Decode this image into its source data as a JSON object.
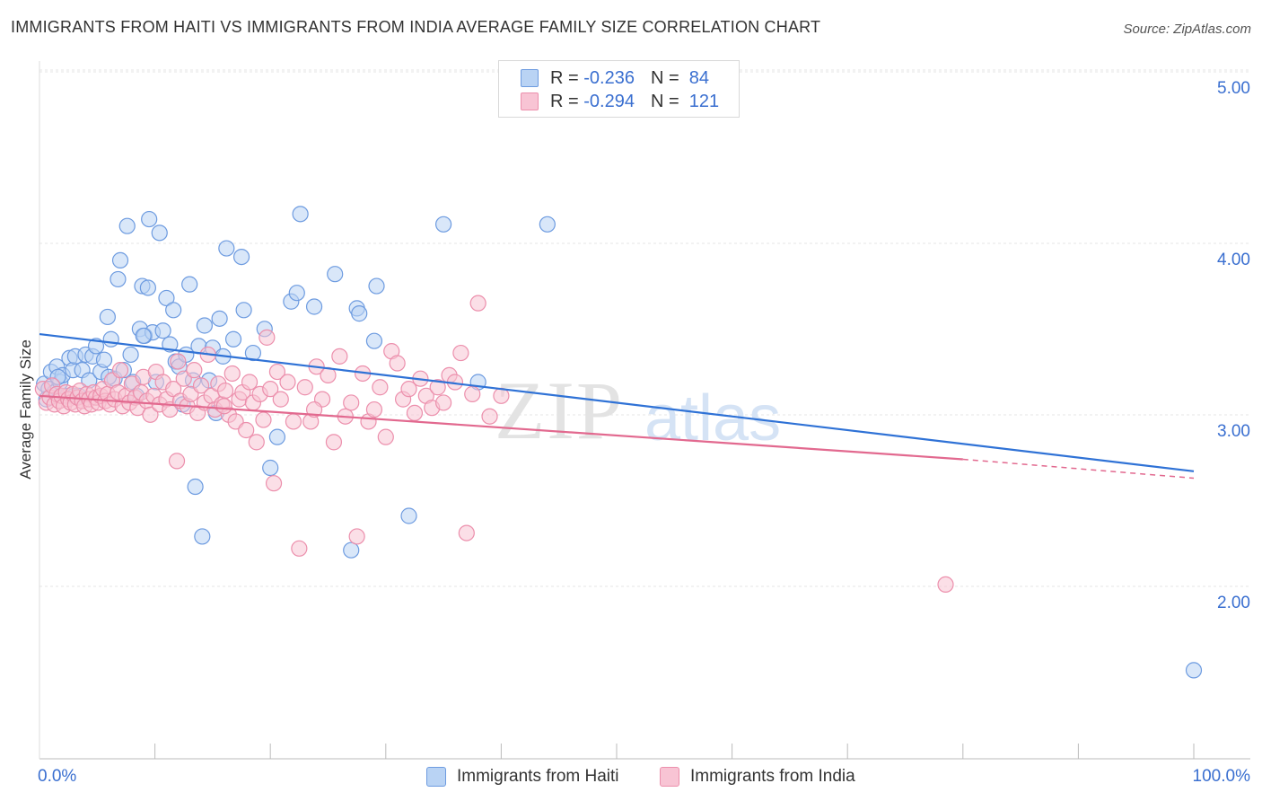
{
  "header": {
    "title": "IMMIGRANTS FROM HAITI VS IMMIGRANTS FROM INDIA AVERAGE FAMILY SIZE CORRELATION CHART",
    "source": "Source: ZipAtlas.com"
  },
  "watermark": {
    "zip": "ZIP",
    "atlas": "atlas"
  },
  "stats_legend": [
    {
      "r_label": "R =",
      "r_value": "-0.236",
      "n_label": "N =",
      "n_value": "84",
      "fill": "#b9d3f4",
      "stroke": "#6d9be0"
    },
    {
      "r_label": "R =",
      "r_value": "-0.294",
      "n_label": "N =",
      "n_value": "121",
      "fill": "#f8c4d4",
      "stroke": "#ec8fac"
    }
  ],
  "bottom_legend": [
    {
      "label": "Immigrants from Haiti",
      "fill": "#b9d3f4",
      "stroke": "#6d9be0"
    },
    {
      "label": "Immigrants from India",
      "fill": "#f8c4d4",
      "stroke": "#ec8fac"
    }
  ],
  "chart_data": {
    "type": "scatter",
    "title": "IMMIGRANTS FROM HAITI VS IMMIGRANTS FROM INDIA AVERAGE FAMILY SIZE CORRELATION CHART",
    "xlabel": "",
    "ylabel": "Average Family Size",
    "xlim": [
      0,
      100
    ],
    "ylim": [
      1.0,
      5.15
    ],
    "x_tick_labels": [
      "0.0%",
      "100.0%"
    ],
    "y_ticks": [
      2,
      3,
      4,
      5
    ],
    "y_tick_labels": [
      "2.00",
      "3.00",
      "4.00",
      "5.00"
    ],
    "grid": true,
    "legend_position": "top-center",
    "series": [
      {
        "name": "Immigrants from Haiti",
        "color": "#6d9be0",
        "fill": "#b9d3f4",
        "trend": {
          "x": [
            0,
            100
          ],
          "y": [
            3.56,
            2.76
          ],
          "color": "#2f72d6"
        },
        "points": [
          [
            0.4,
            3.27
          ],
          [
            0.8,
            3.24
          ],
          [
            1.0,
            3.34
          ],
          [
            1.3,
            3.22
          ],
          [
            1.5,
            3.37
          ],
          [
            1.8,
            3.28
          ],
          [
            2.0,
            3.32
          ],
          [
            2.4,
            3.2
          ],
          [
            2.6,
            3.42
          ],
          [
            2.9,
            3.35
          ],
          [
            3.1,
            3.43
          ],
          [
            3.4,
            3.2
          ],
          [
            3.7,
            3.35
          ],
          [
            4.0,
            3.44
          ],
          [
            4.3,
            3.29
          ],
          [
            4.6,
            3.43
          ],
          [
            4.9,
            3.49
          ],
          [
            5.3,
            3.34
          ],
          [
            5.6,
            3.41
          ],
          [
            5.9,
            3.66
          ],
          [
            6.2,
            3.53
          ],
          [
            6.5,
            3.3
          ],
          [
            6.8,
            3.88
          ],
          [
            7.0,
            3.99
          ],
          [
            7.3,
            3.35
          ],
          [
            7.6,
            4.19
          ],
          [
            7.9,
            3.44
          ],
          [
            8.1,
            3.28
          ],
          [
            8.4,
            3.2
          ],
          [
            8.7,
            3.59
          ],
          [
            8.9,
            3.84
          ],
          [
            9.1,
            3.55
          ],
          [
            9.4,
            3.83
          ],
          [
            9.5,
            4.23
          ],
          [
            9.8,
            3.57
          ],
          [
            10.1,
            3.28
          ],
          [
            10.4,
            4.15
          ],
          [
            10.7,
            3.58
          ],
          [
            11.0,
            3.77
          ],
          [
            11.3,
            3.5
          ],
          [
            11.6,
            3.7
          ],
          [
            11.8,
            3.4
          ],
          [
            12.1,
            3.37
          ],
          [
            12.4,
            3.15
          ],
          [
            12.7,
            3.44
          ],
          [
            13.0,
            3.85
          ],
          [
            13.3,
            3.29
          ],
          [
            13.5,
            2.67
          ],
          [
            13.8,
            3.49
          ],
          [
            14.1,
            2.38
          ],
          [
            14.3,
            3.61
          ],
          [
            14.7,
            3.29
          ],
          [
            15.0,
            3.48
          ],
          [
            15.3,
            3.1
          ],
          [
            15.6,
            3.65
          ],
          [
            15.9,
            3.43
          ],
          [
            16.2,
            4.06
          ],
          [
            16.8,
            3.53
          ],
          [
            17.5,
            4.01
          ],
          [
            17.7,
            3.7
          ],
          [
            18.5,
            3.45
          ],
          [
            19.5,
            3.59
          ],
          [
            20.0,
            2.78
          ],
          [
            20.6,
            2.96
          ],
          [
            21.8,
            3.75
          ],
          [
            22.3,
            3.8
          ],
          [
            22.6,
            4.26
          ],
          [
            23.8,
            3.72
          ],
          [
            25.6,
            3.91
          ],
          [
            27.0,
            2.3
          ],
          [
            27.5,
            3.71
          ],
          [
            29.2,
            3.84
          ],
          [
            27.7,
            3.68
          ],
          [
            29.0,
            3.52
          ],
          [
            32.0,
            2.5
          ],
          [
            35.0,
            4.2
          ],
          [
            38.0,
            3.28
          ],
          [
            44.0,
            4.2
          ],
          [
            100.0,
            1.6
          ],
          [
            6.0,
            3.31
          ],
          [
            9.0,
            3.55
          ],
          [
            3.0,
            3.2
          ],
          [
            0.6,
            3.18
          ],
          [
            1.6,
            3.31
          ]
        ]
      },
      {
        "name": "Immigrants from India",
        "color": "#ec8fac",
        "fill": "#f8c4d4",
        "trend": {
          "x": [
            0,
            80,
            100
          ],
          "y": [
            3.2,
            2.83,
            2.72
          ],
          "color": "#e2698f",
          "dashed_from": 80
        },
        "points": [
          [
            0.3,
            3.24
          ],
          [
            0.6,
            3.16
          ],
          [
            0.9,
            3.19
          ],
          [
            1.1,
            3.26
          ],
          [
            1.3,
            3.15
          ],
          [
            1.5,
            3.21
          ],
          [
            1.7,
            3.17
          ],
          [
            1.9,
            3.2
          ],
          [
            2.1,
            3.14
          ],
          [
            2.3,
            3.22
          ],
          [
            2.5,
            3.18
          ],
          [
            2.7,
            3.16
          ],
          [
            2.9,
            3.21
          ],
          [
            3.1,
            3.15
          ],
          [
            3.3,
            3.19
          ],
          [
            3.5,
            3.23
          ],
          [
            3.7,
            3.17
          ],
          [
            3.9,
            3.14
          ],
          [
            4.1,
            3.21
          ],
          [
            4.3,
            3.18
          ],
          [
            4.5,
            3.15
          ],
          [
            4.7,
            3.22
          ],
          [
            4.9,
            3.19
          ],
          [
            5.1,
            3.16
          ],
          [
            5.3,
            3.2
          ],
          [
            5.5,
            3.24
          ],
          [
            5.7,
            3.17
          ],
          [
            5.9,
            3.21
          ],
          [
            6.1,
            3.15
          ],
          [
            6.3,
            3.29
          ],
          [
            6.5,
            3.18
          ],
          [
            6.8,
            3.22
          ],
          [
            7.0,
            3.35
          ],
          [
            7.2,
            3.14
          ],
          [
            7.5,
            3.2
          ],
          [
            7.8,
            3.16
          ],
          [
            8.0,
            3.27
          ],
          [
            8.3,
            3.19
          ],
          [
            8.5,
            3.13
          ],
          [
            8.8,
            3.22
          ],
          [
            9.0,
            3.31
          ],
          [
            9.3,
            3.17
          ],
          [
            9.6,
            3.09
          ],
          [
            9.9,
            3.2
          ],
          [
            10.1,
            3.34
          ],
          [
            10.4,
            3.15
          ],
          [
            10.7,
            3.28
          ],
          [
            11.0,
            3.18
          ],
          [
            11.3,
            3.12
          ],
          [
            11.6,
            3.24
          ],
          [
            11.9,
            2.82
          ],
          [
            12.2,
            3.17
          ],
          [
            12.5,
            3.3
          ],
          [
            12.8,
            3.14
          ],
          [
            13.1,
            3.21
          ],
          [
            13.4,
            3.35
          ],
          [
            13.7,
            3.1
          ],
          [
            14.0,
            3.26
          ],
          [
            14.3,
            3.16
          ],
          [
            14.6,
            3.44
          ],
          [
            14.9,
            3.2
          ],
          [
            15.2,
            3.12
          ],
          [
            15.5,
            3.27
          ],
          [
            15.8,
            3.15
          ],
          [
            16.1,
            3.23
          ],
          [
            16.4,
            3.09
          ],
          [
            16.7,
            3.33
          ],
          [
            17.0,
            3.05
          ],
          [
            17.3,
            3.18
          ],
          [
            17.6,
            3.22
          ],
          [
            17.9,
            3.0
          ],
          [
            18.2,
            3.28
          ],
          [
            18.5,
            3.16
          ],
          [
            18.8,
            2.93
          ],
          [
            19.1,
            3.21
          ],
          [
            19.4,
            3.06
          ],
          [
            19.7,
            3.54
          ],
          [
            20.0,
            3.24
          ],
          [
            20.3,
            2.69
          ],
          [
            20.6,
            3.34
          ],
          [
            20.9,
            3.18
          ],
          [
            21.5,
            3.28
          ],
          [
            22.0,
            3.05
          ],
          [
            22.5,
            2.31
          ],
          [
            23.0,
            3.25
          ],
          [
            23.5,
            3.05
          ],
          [
            24.0,
            3.37
          ],
          [
            24.5,
            3.18
          ],
          [
            25.0,
            3.32
          ],
          [
            25.5,
            2.93
          ],
          [
            26.0,
            3.43
          ],
          [
            26.5,
            3.08
          ],
          [
            27.0,
            3.16
          ],
          [
            27.5,
            2.38
          ],
          [
            28.0,
            3.33
          ],
          [
            28.5,
            3.05
          ],
          [
            29.0,
            3.12
          ],
          [
            29.5,
            3.25
          ],
          [
            30.0,
            2.96
          ],
          [
            30.5,
            3.46
          ],
          [
            31.0,
            3.39
          ],
          [
            31.5,
            3.18
          ],
          [
            32.0,
            3.24
          ],
          [
            32.5,
            3.1
          ],
          [
            33.0,
            3.3
          ],
          [
            33.5,
            3.2
          ],
          [
            34.0,
            3.13
          ],
          [
            34.5,
            3.25
          ],
          [
            35.0,
            3.16
          ],
          [
            35.5,
            3.32
          ],
          [
            36.0,
            3.28
          ],
          [
            36.5,
            3.45
          ],
          [
            37.0,
            2.4
          ],
          [
            37.5,
            3.21
          ],
          [
            38.0,
            3.74
          ],
          [
            39.0,
            3.08
          ],
          [
            40.0,
            3.2
          ],
          [
            23.8,
            3.12
          ],
          [
            16.0,
            3.14
          ],
          [
            78.5,
            2.1
          ],
          [
            12.0,
            3.4
          ]
        ]
      }
    ]
  }
}
